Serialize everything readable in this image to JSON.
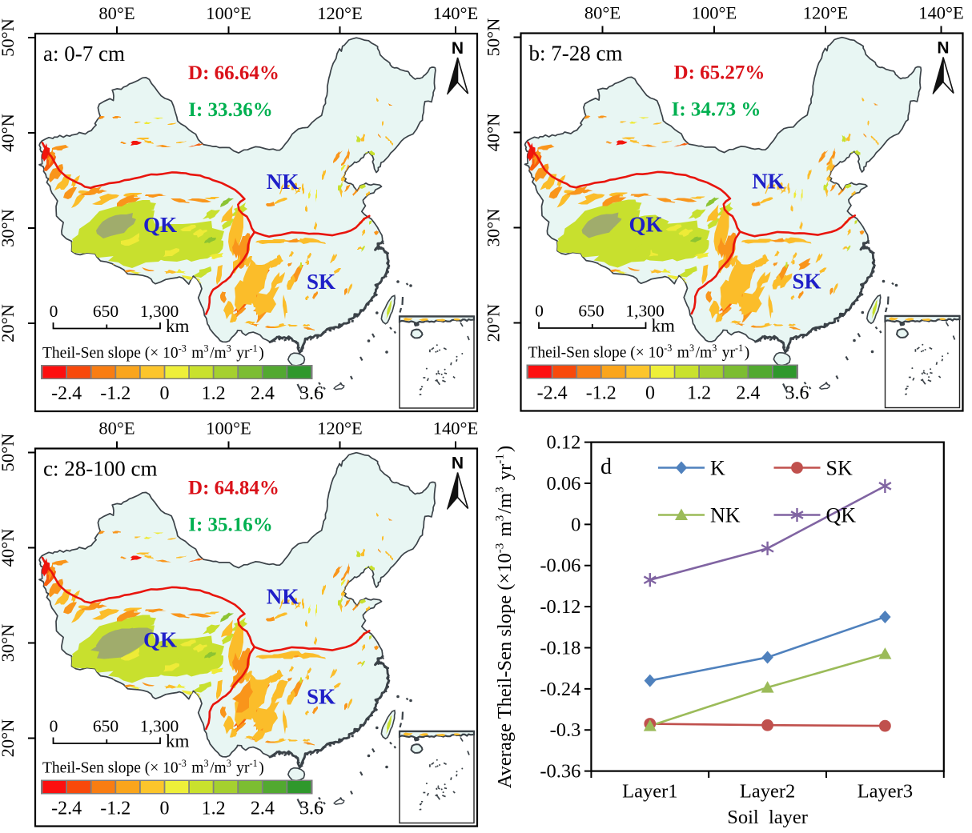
{
  "panels": [
    {
      "id": "a",
      "title": "a: 0-7 cm",
      "decrease_label": "D: 66.64%",
      "increase_label": "I: 33.36%"
    },
    {
      "id": "b",
      "title": "b: 7-28 cm",
      "decrease_label": "D: 65.27%",
      "increase_label": "I: 34.73 %"
    },
    {
      "id": "c",
      "title": "c: 28-100 cm",
      "decrease_label": "D: 64.84%",
      "increase_label": "I: 35.16%"
    }
  ],
  "map_axes": {
    "lon_labels": [
      "80°E",
      "100°E",
      "120°E",
      "140°E"
    ],
    "lat_labels": [
      "50°N",
      "40°N",
      "30°N",
      "20°N"
    ]
  },
  "region_labels": {
    "qk": "QK",
    "nk": "NK",
    "sk": "SK"
  },
  "north_arrow_label": "N",
  "scale_bar": {
    "labels": [
      "0",
      "650",
      "1,300"
    ],
    "unit": "km"
  },
  "colorbar": {
    "title_segments": [
      [
        "Theil-Sen slope (× 10",
        "-3"
      ],
      [
        " m",
        "3"
      ],
      [
        "/m",
        "3"
      ],
      [
        " yr",
        "-1"
      ],
      [
        ")",
        ""
      ]
    ],
    "tick_labels": [
      "-2.4",
      "-1.2",
      "0",
      "1.2",
      "2.4",
      "3.6"
    ],
    "colors": [
      "#fd0f0f",
      "#f8490b",
      "#f97d12",
      "#faa51c",
      "#fcc52b",
      "#eeef39",
      "#c9e12d",
      "#a5d02f",
      "#7cbd32",
      "#52a930",
      "#2f982c"
    ]
  },
  "status_colors": {
    "decrease": "#da121a",
    "increase": "#00b050",
    "region_label": "#1f1fc8",
    "qk_boundary_line": "#e8150d"
  },
  "chart_data": {
    "type": "line",
    "panel_label": "d",
    "categories": [
      "Layer1",
      "Layer2",
      "Layer3"
    ],
    "x_label": "Soil  layer",
    "y_label_segments": [
      [
        "Average Theil-Sen slope (×10",
        "-3"
      ],
      [
        " m",
        "3"
      ],
      [
        "/m",
        "3"
      ],
      [
        " yr",
        "-1"
      ],
      [
        ")",
        ""
      ]
    ],
    "ylim": [
      -0.36,
      0.12
    ],
    "ytick_labels": [
      "0.12",
      "0.06",
      "0",
      "-0.06",
      "-0.12",
      "-0.18",
      "-0.24",
      "-0.3",
      "-0.36"
    ],
    "grid": false,
    "legend_position": "top-inside",
    "legend_rows": [
      [
        "K",
        "SK"
      ],
      [
        "NK",
        "QK"
      ]
    ],
    "series": [
      {
        "name": "K",
        "color": "#4f81bd",
        "marker": "diamond",
        "values": [
          -0.228,
          -0.194,
          -0.135
        ]
      },
      {
        "name": "SK",
        "color": "#c0504d",
        "marker": "circle",
        "values": [
          -0.291,
          -0.293,
          -0.294
        ]
      },
      {
        "name": "NK",
        "color": "#9bbb59",
        "marker": "triangle",
        "values": [
          -0.294,
          -0.238,
          -0.189
        ]
      },
      {
        "name": "QK",
        "color": "#8064a2",
        "marker": "asterisk",
        "values": [
          -0.081,
          -0.035,
          0.056
        ]
      }
    ]
  }
}
